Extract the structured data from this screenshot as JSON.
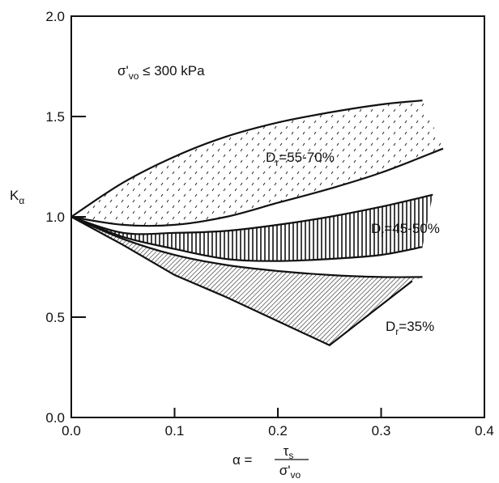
{
  "chart_data": {
    "type": "area",
    "title": "",
    "xlabel": {
      "prefix": "α =",
      "numerator": "τ",
      "numerator_sub": "s",
      "denominator": "σ'",
      "denominator_sub": "vo"
    },
    "ylabel": {
      "main": "K",
      "sub": "α"
    },
    "xlim": [
      0,
      0.4
    ],
    "ylim": [
      0,
      2.0
    ],
    "x_ticks": [
      "0.0",
      "0.1",
      "0.2",
      "0.3",
      "0.4"
    ],
    "y_ticks": [
      "0.0",
      "0.5",
      "1.0",
      "1.5",
      "2.0"
    ],
    "x_tick_values": [
      0,
      0.1,
      0.2,
      0.3,
      0.4
    ],
    "y_tick_values": [
      0,
      0.5,
      1.0,
      1.5,
      2.0
    ],
    "grid": false,
    "condition": {
      "pre": "σ'",
      "sub": "vo",
      "post": " ≤ 300 kPa"
    },
    "bands": [
      {
        "label_pre": "D",
        "label_sub": "r",
        "label_post": "=55-70%",
        "fill": "dots",
        "upper": [
          [
            0,
            1.0
          ],
          [
            0.05,
            1.17
          ],
          [
            0.1,
            1.3
          ],
          [
            0.15,
            1.4
          ],
          [
            0.2,
            1.47
          ],
          [
            0.25,
            1.52
          ],
          [
            0.3,
            1.56
          ],
          [
            0.34,
            1.58
          ]
        ],
        "lower": [
          [
            0,
            1.0
          ],
          [
            0.05,
            0.96
          ],
          [
            0.1,
            0.96
          ],
          [
            0.15,
            1.0
          ],
          [
            0.2,
            1.07
          ],
          [
            0.25,
            1.14
          ],
          [
            0.3,
            1.22
          ],
          [
            0.36,
            1.34
          ]
        ]
      },
      {
        "label_pre": "D",
        "label_sub": "r",
        "label_post": "=45-50%",
        "fill": "vertical-lines",
        "upper": [
          [
            0,
            1.0
          ],
          [
            0.05,
            0.92
          ],
          [
            0.1,
            0.92
          ],
          [
            0.15,
            0.93
          ],
          [
            0.2,
            0.96
          ],
          [
            0.25,
            1.0
          ],
          [
            0.3,
            1.05
          ],
          [
            0.35,
            1.11
          ]
        ],
        "lower": [
          [
            0,
            1.0
          ],
          [
            0.05,
            0.9
          ],
          [
            0.1,
            0.84
          ],
          [
            0.15,
            0.79
          ],
          [
            0.2,
            0.78
          ],
          [
            0.25,
            0.79
          ],
          [
            0.3,
            0.81
          ],
          [
            0.34,
            0.85
          ]
        ]
      },
      {
        "label_pre": "D",
        "label_sub": "r",
        "label_post": "=35%",
        "fill": "diagonal-lines",
        "upper": [
          [
            0,
            1.0
          ],
          [
            0.05,
            0.89
          ],
          [
            0.1,
            0.81
          ],
          [
            0.15,
            0.76
          ],
          [
            0.2,
            0.73
          ],
          [
            0.25,
            0.71
          ],
          [
            0.3,
            0.7
          ],
          [
            0.34,
            0.7
          ]
        ],
        "lower": [
          [
            0,
            1.0
          ],
          [
            0.05,
            0.86
          ],
          [
            0.1,
            0.71
          ],
          [
            0.15,
            0.6
          ],
          [
            0.2,
            0.48
          ],
          [
            0.25,
            0.36
          ],
          [
            0.3,
            0.56
          ],
          [
            0.33,
            0.68
          ]
        ]
      }
    ]
  }
}
